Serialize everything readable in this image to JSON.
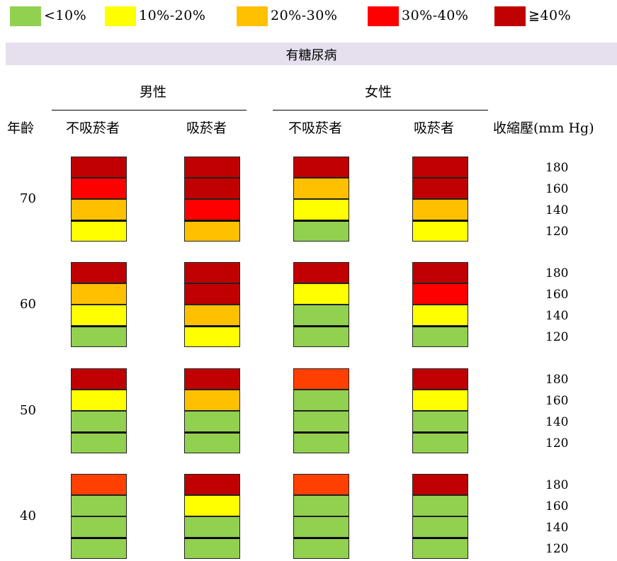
{
  "legend": [
    {
      "label": "<10%",
      "color": "#92d050"
    },
    {
      "label": "10%-20%",
      "color": "#ffff00"
    },
    {
      "label": "20%-30%",
      "color": "#ffc000"
    },
    {
      "label": "30%-40%",
      "color": "#ff0000"
    },
    {
      "label": "≧40%",
      "color": "#c00000"
    }
  ],
  "header": {
    "title": "有糖尿病",
    "male": "男性",
    "female": "女性",
    "age_col": "年齡",
    "non_smoker": "不吸菸者",
    "smoker": "吸菸者",
    "sbp_col": "收縮壓(mm Hg)"
  },
  "chart_data": {
    "type": "heatmap",
    "title": "有糖尿病",
    "sexes": [
      "男性",
      "女性"
    ],
    "smoking_status": [
      "不吸菸者",
      "吸菸者"
    ],
    "ages": [
      70,
      60,
      50,
      40
    ],
    "sbp_levels": [
      180,
      160,
      140,
      120
    ],
    "color_scale": [
      {
        "label": "<10%",
        "color": "#92d050"
      },
      {
        "label": "10%-20%",
        "color": "#ffff00"
      },
      {
        "label": "20%-30%",
        "color": "#ffc000"
      },
      {
        "label": "30%-40%",
        "color": "#ff0000"
      },
      {
        "label": "≧40%",
        "color": "#c00000"
      }
    ],
    "colors": {
      "green": "#92d050",
      "yellow": "#ffff00",
      "orange": "#ffc000",
      "red": "#ff0000",
      "dark_red": "#c00000",
      "orange_red": "#ff4000"
    },
    "columns": [
      {
        "sex": "男性",
        "smoking": "不吸菸者",
        "cells": [
          [
            "dark_red",
            "red",
            "orange",
            "yellow"
          ],
          [
            "dark_red",
            "orange",
            "yellow",
            "green"
          ],
          [
            "dark_red",
            "yellow",
            "green",
            "green"
          ],
          [
            "orange_red",
            "green",
            "green",
            "green"
          ]
        ]
      },
      {
        "sex": "男性",
        "smoking": "吸菸者",
        "cells": [
          [
            "dark_red",
            "dark_red",
            "red",
            "orange"
          ],
          [
            "dark_red",
            "dark_red",
            "orange",
            "yellow"
          ],
          [
            "dark_red",
            "orange",
            "green",
            "green"
          ],
          [
            "dark_red",
            "yellow",
            "green",
            "green"
          ]
        ]
      },
      {
        "sex": "女性",
        "smoking": "不吸菸者",
        "cells": [
          [
            "dark_red",
            "orange",
            "yellow",
            "green"
          ],
          [
            "dark_red",
            "yellow",
            "green",
            "green"
          ],
          [
            "orange_red",
            "green",
            "green",
            "green"
          ],
          [
            "orange_red",
            "green",
            "green",
            "green"
          ]
        ]
      },
      {
        "sex": "女性",
        "smoking": "吸菸者",
        "cells": [
          [
            "dark_red",
            "dark_red",
            "orange",
            "yellow"
          ],
          [
            "dark_red",
            "red",
            "yellow",
            "green"
          ],
          [
            "dark_red",
            "yellow",
            "green",
            "green"
          ],
          [
            "dark_red",
            "green",
            "green",
            "green"
          ]
        ]
      }
    ]
  }
}
